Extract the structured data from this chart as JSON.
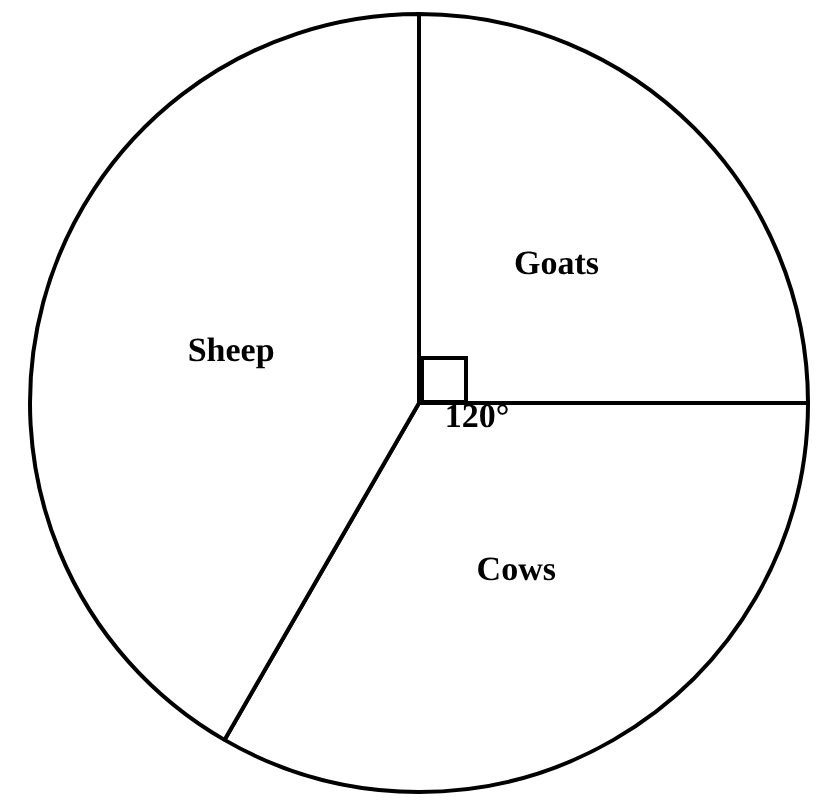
{
  "chart_data": {
    "type": "pie",
    "categories": [
      "Goats",
      "Cows",
      "Sheep"
    ],
    "values": [
      90,
      120,
      150
    ],
    "colors": [
      "#ffffff",
      "#ffffff",
      "#ffffff"
    ],
    "value_labels": [
      null,
      "120°",
      null
    ],
    "legend": false
  }
}
